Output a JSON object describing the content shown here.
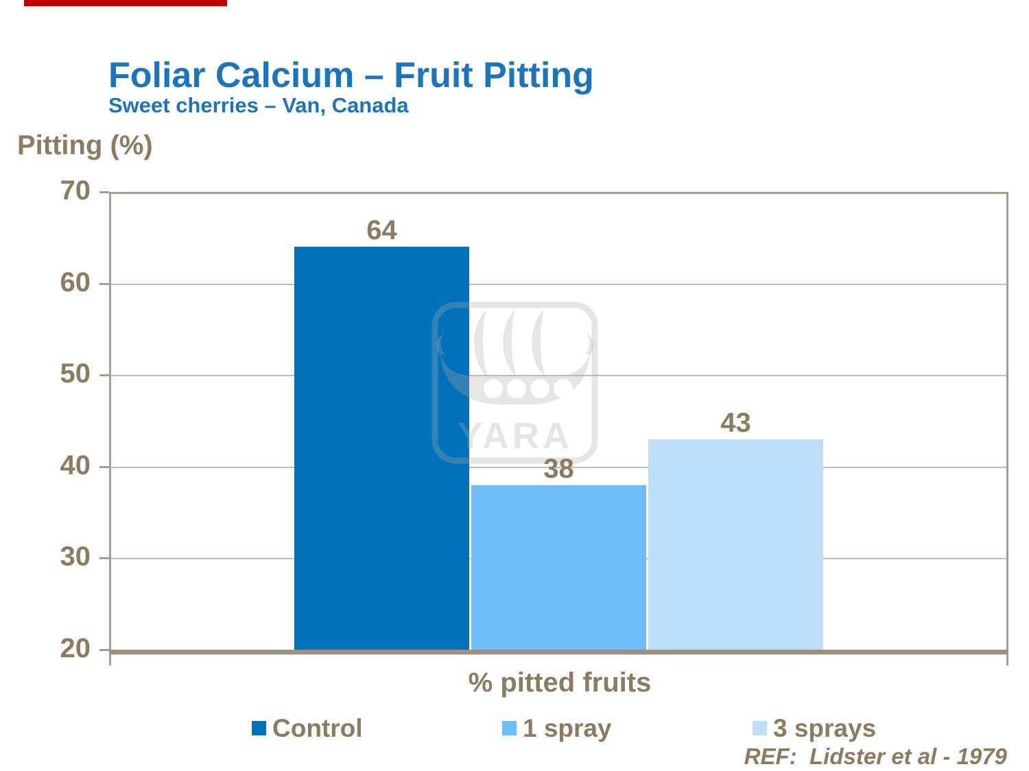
{
  "accent_bar": {
    "color": "#C00000"
  },
  "chart_data": {
    "type": "bar",
    "title": "Foliar Calcium – Fruit Pitting",
    "subtitle": "Sweet cherries – Van, Canada",
    "ylabel": "Pitting (%)",
    "xlabel": "% pitted fruits",
    "categories": [
      "% pitted fruits"
    ],
    "series": [
      {
        "name": "Control",
        "values": [
          64
        ],
        "color": "#0072BC"
      },
      {
        "name": "1 spray",
        "values": [
          38
        ],
        "color": "#6DBDF7"
      },
      {
        "name": "3 sprays",
        "values": [
          43
        ],
        "color": "#BDDFF9"
      }
    ],
    "ylim": [
      20,
      70
    ],
    "yticks": [
      20,
      30,
      40,
      50,
      60,
      70
    ],
    "grid": true,
    "legend_position": "bottom",
    "title_color": "#1B75BC",
    "text_color": "#8B7B61",
    "grid_color": "#C5BCAF",
    "frame_color": "#A89E90"
  },
  "footer": {
    "reference": "REF:  Lidster et al - 1979"
  },
  "watermark": {
    "label": "YARA"
  }
}
